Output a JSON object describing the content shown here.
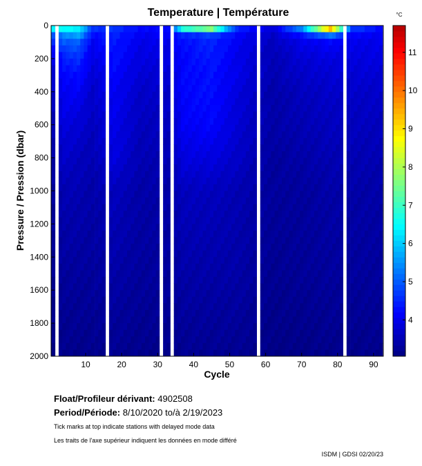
{
  "chart_data": {
    "type": "heatmap",
    "title": "Temperature | Température",
    "xlabel": "Cycle",
    "ylabel": "Pressure / Pression (dbar)",
    "colorbar_label": "°C",
    "xlim": [
      0.4,
      92.7
    ],
    "ylim": [
      2000,
      0
    ],
    "x_ticks": [
      10,
      20,
      30,
      40,
      50,
      60,
      70,
      80,
      90
    ],
    "y_ticks": [
      0,
      200,
      400,
      600,
      800,
      1000,
      1200,
      1400,
      1600,
      1800,
      2000
    ],
    "color_range": [
      3.05,
      11.7
    ],
    "colorbar_ticks": [
      4,
      5,
      6,
      7,
      8,
      9,
      10,
      11
    ],
    "colormap": "jet",
    "contour_level_label": "4",
    "cycles": 92,
    "missing_cycles": [
      2,
      16,
      31,
      34,
      58,
      82
    ],
    "depth_levels": [
      0,
      25,
      50,
      100,
      200,
      300,
      400,
      600,
      800,
      1000,
      1500,
      2000
    ],
    "profiles": [
      {
        "cycle": 1,
        "temps": [
          8,
          6,
          5,
          4.5,
          4,
          3.8,
          3.7,
          3.5,
          3.4,
          3.3,
          3.2,
          3.1
        ]
      },
      {
        "cycle": 4,
        "temps": [
          8.5,
          6,
          5.5,
          5,
          4.4,
          4.2,
          4.1,
          3.9,
          3.7,
          3.5,
          3.3,
          3.15
        ]
      },
      {
        "cycle": 8,
        "temps": [
          7,
          6.2,
          5.8,
          5,
          4.6,
          4.3,
          4.1,
          3.8,
          3.6,
          3.5,
          3.3,
          3.15
        ]
      },
      {
        "cycle": 12,
        "temps": [
          5,
          4.5,
          4.3,
          4.1,
          3.9,
          3.8,
          3.7,
          3.6,
          3.5,
          3.4,
          3.3,
          3.15
        ]
      },
      {
        "cycle": 18,
        "temps": [
          4.8,
          4.6,
          4.5,
          4.4,
          4.3,
          4.2,
          4.1,
          4.0,
          3.9,
          3.6,
          3.4,
          3.2
        ]
      },
      {
        "cycle": 25,
        "temps": [
          4.3,
          4.2,
          4.1,
          4.0,
          3.9,
          3.8,
          3.7,
          3.6,
          3.5,
          3.4,
          3.3,
          3.15
        ]
      },
      {
        "cycle": 33,
        "temps": [
          4.5,
          4.2,
          4.1,
          4.0,
          3.9,
          3.8,
          3.7,
          3.6,
          3.5,
          3.4,
          3.3,
          3.15
        ]
      },
      {
        "cycle": 37,
        "temps": [
          9.5,
          6,
          4.5,
          4.3,
          4.2,
          4.2,
          4.2,
          4.1,
          3.9,
          3.6,
          3.4,
          3.2
        ]
      },
      {
        "cycle": 45,
        "temps": [
          10,
          7,
          4.8,
          4.5,
          4.4,
          4.3,
          4.3,
          4.2,
          3.9,
          3.6,
          3.4,
          3.2
        ]
      },
      {
        "cycle": 52,
        "temps": [
          5,
          4.4,
          4.2,
          4.1,
          4.0,
          4.0,
          3.9,
          3.8,
          3.7,
          3.5,
          3.4,
          3.2
        ]
      },
      {
        "cycle": 62,
        "temps": [
          3.9,
          3.8,
          3.7,
          3.6,
          3.5,
          3.5,
          3.4,
          3.4,
          3.3,
          3.3,
          3.2,
          3.1
        ]
      },
      {
        "cycle": 70,
        "temps": [
          7,
          5,
          4.4,
          4,
          3.8,
          3.7,
          3.6,
          3.5,
          3.4,
          3.3,
          3.25,
          3.1
        ]
      },
      {
        "cycle": 78,
        "temps": [
          11,
          9,
          5.5,
          4.2,
          3.9,
          3.8,
          3.7,
          3.6,
          3.5,
          3.4,
          3.3,
          3.15
        ]
      },
      {
        "cycle": 84,
        "temps": [
          5.5,
          4.5,
          4.2,
          4.0,
          3.9,
          3.8,
          3.7,
          3.6,
          3.5,
          3.4,
          3.3,
          3.15
        ]
      },
      {
        "cycle": 92,
        "temps": [
          4.5,
          4.2,
          4.1,
          4.0,
          3.9,
          3.8,
          3.7,
          3.6,
          3.5,
          3.4,
          3.3,
          3.15
        ]
      }
    ]
  },
  "info": {
    "float_label": "Float/Profileur dérivant:",
    "float_id": "4902508",
    "period_label": "Period/Période:",
    "period_value": "8/10/2020  to/à  2/19/2023",
    "note_en": "Tick marks at top indicate stations with delayed mode data",
    "note_fr": "Les traits de l'axe supérieur indiquent les données en mode différé",
    "credit": "ISDM | GDSI  02/20/23"
  }
}
